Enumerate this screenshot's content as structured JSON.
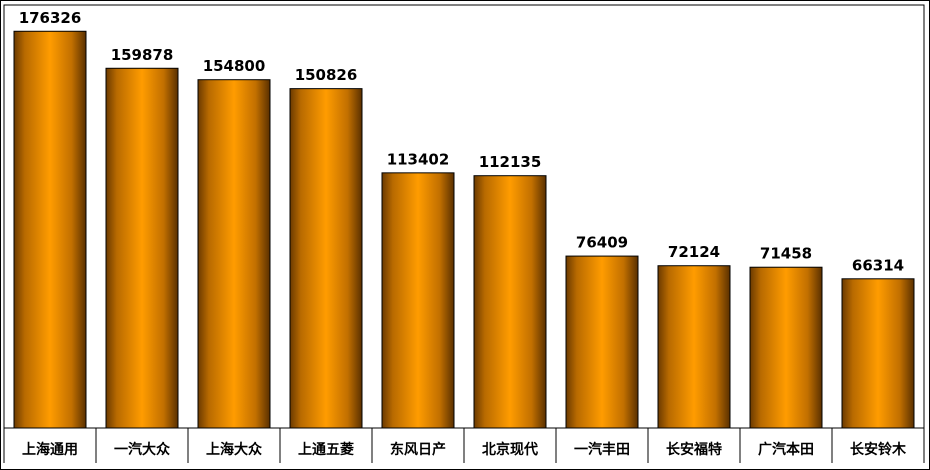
{
  "chart_data": {
    "type": "bar",
    "categories": [
      "上海通用",
      "一汽大众",
      "上海大众",
      "上通五菱",
      "东风日产",
      "北京现代",
      "一汽丰田",
      "长安福特",
      "广汽本田",
      "长安铃木"
    ],
    "values": [
      176326,
      159878,
      154800,
      150826,
      113402,
      112135,
      76409,
      72124,
      71458,
      66314
    ],
    "color": "#ff9900",
    "ylim": [
      0,
      188000
    ]
  }
}
